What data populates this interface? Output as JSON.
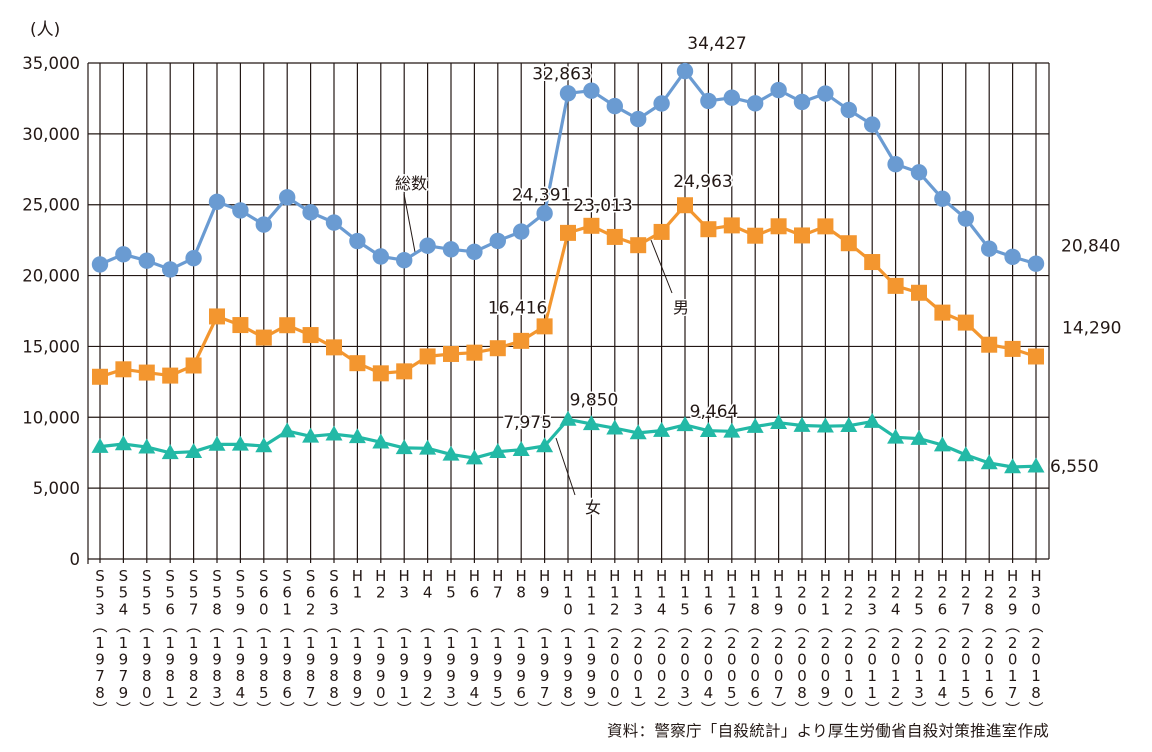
{
  "chart_data": {
    "type": "line",
    "unit_label": "(人)",
    "ylim": [
      0,
      35000
    ],
    "yticks": [
      "0",
      "5,000",
      "10,000",
      "15,000",
      "20,000",
      "25,000",
      "30,000",
      "35,000"
    ],
    "ytick_values": [
      0,
      5000,
      10000,
      15000,
      20000,
      25000,
      30000,
      35000
    ],
    "grid": true,
    "categories": [
      {
        "era": "S",
        "num": "53",
        "year": "1978"
      },
      {
        "era": "S",
        "num": "54",
        "year": "1979"
      },
      {
        "era": "S",
        "num": "55",
        "year": "1980"
      },
      {
        "era": "S",
        "num": "56",
        "year": "1981"
      },
      {
        "era": "S",
        "num": "57",
        "year": "1982"
      },
      {
        "era": "S",
        "num": "58",
        "year": "1983"
      },
      {
        "era": "S",
        "num": "59",
        "year": "1984"
      },
      {
        "era": "S",
        "num": "60",
        "year": "1985"
      },
      {
        "era": "S",
        "num": "61",
        "year": "1986"
      },
      {
        "era": "S",
        "num": "62",
        "year": "1987"
      },
      {
        "era": "S",
        "num": "63",
        "year": "1988"
      },
      {
        "era": "H",
        "num": "1",
        "year": "1989"
      },
      {
        "era": "H",
        "num": "2",
        "year": "1990"
      },
      {
        "era": "H",
        "num": "3",
        "year": "1991"
      },
      {
        "era": "H",
        "num": "4",
        "year": "1992"
      },
      {
        "era": "H",
        "num": "5",
        "year": "1993"
      },
      {
        "era": "H",
        "num": "6",
        "year": "1994"
      },
      {
        "era": "H",
        "num": "7",
        "year": "1995"
      },
      {
        "era": "H",
        "num": "8",
        "year": "1996"
      },
      {
        "era": "H",
        "num": "9",
        "year": "1997"
      },
      {
        "era": "H",
        "num": "10",
        "year": "1998"
      },
      {
        "era": "H",
        "num": "11",
        "year": "1999"
      },
      {
        "era": "H",
        "num": "12",
        "year": "2000"
      },
      {
        "era": "H",
        "num": "13",
        "year": "2001"
      },
      {
        "era": "H",
        "num": "14",
        "year": "2002"
      },
      {
        "era": "H",
        "num": "15",
        "year": "2003"
      },
      {
        "era": "H",
        "num": "16",
        "year": "2004"
      },
      {
        "era": "H",
        "num": "17",
        "year": "2005"
      },
      {
        "era": "H",
        "num": "18",
        "year": "2006"
      },
      {
        "era": "H",
        "num": "19",
        "year": "2007"
      },
      {
        "era": "H",
        "num": "20",
        "year": "2008"
      },
      {
        "era": "H",
        "num": "21",
        "year": "2009"
      },
      {
        "era": "H",
        "num": "22",
        "year": "2010"
      },
      {
        "era": "H",
        "num": "23",
        "year": "2011"
      },
      {
        "era": "H",
        "num": "24",
        "year": "2012"
      },
      {
        "era": "H",
        "num": "25",
        "year": "2013"
      },
      {
        "era": "H",
        "num": "26",
        "year": "2014"
      },
      {
        "era": "H",
        "num": "27",
        "year": "2015"
      },
      {
        "era": "H",
        "num": "28",
        "year": "2016"
      },
      {
        "era": "H",
        "num": "29",
        "year": "2017"
      },
      {
        "era": "H",
        "num": "30",
        "year": "2018"
      }
    ],
    "series": [
      {
        "name": "総数",
        "marker": "circle",
        "color": "#6a9bd2",
        "values": [
          20788,
          21503,
          21048,
          20434,
          21228,
          25202,
          24596,
          23599,
          25524,
          24460,
          23742,
          22436,
          21346,
          21084,
          22104,
          21851,
          21679,
          22445,
          23104,
          24391,
          32863,
          33048,
          31957,
          31042,
          32143,
          34427,
          32325,
          32552,
          32155,
          33093,
          32249,
          32845,
          31690,
          30651,
          27858,
          27283,
          25427,
          24025,
          21897,
          21321,
          20840
        ],
        "data_labels": [
          {
            "index": 19,
            "text": "24,391"
          },
          {
            "index": 20,
            "text": "32,863"
          },
          {
            "index": 25,
            "text": "34,427"
          },
          {
            "index": 40,
            "text": "20,840"
          }
        ]
      },
      {
        "name": "男",
        "marker": "square",
        "color": "#f3962f",
        "values": [
          12859,
          13386,
          13155,
          12942,
          13654,
          17116,
          16508,
          15624,
          16497,
          15802,
          14934,
          13818,
          13102,
          13242,
          14296,
          14468,
          14560,
          14874,
          15393,
          16416,
          23013,
          23512,
          22727,
          22144,
          23080,
          24963,
          23272,
          23540,
          22813,
          23478,
          22831,
          23472,
          22283,
          20955,
          19273,
          18787,
          17386,
          16681,
          15121,
          14826,
          14290
        ],
        "data_labels": [
          {
            "index": 19,
            "text": "16,416"
          },
          {
            "index": 20,
            "text": "23,013"
          },
          {
            "index": 25,
            "text": "24,963"
          },
          {
            "index": 40,
            "text": "14,290"
          }
        ]
      },
      {
        "name": "女",
        "marker": "triangle",
        "color": "#23b9a6",
        "values": [
          7929,
          8117,
          7893,
          7492,
          7574,
          8086,
          8088,
          7975,
          9027,
          8658,
          8808,
          8618,
          8244,
          7842,
          7808,
          7383,
          7119,
          7571,
          7711,
          7975,
          9850,
          9536,
          9230,
          8898,
          9063,
          9464,
          9053,
          9012,
          9342,
          9615,
          9418,
          9373,
          9407,
          9696,
          8585,
          8496,
          8041,
          7344,
          6776,
          6495,
          6550
        ],
        "data_labels": [
          {
            "index": 19,
            "text": "7,975"
          },
          {
            "index": 20,
            "text": "9,850"
          },
          {
            "index": 25,
            "text": "9,464"
          },
          {
            "index": 40,
            "text": "6,550"
          }
        ]
      }
    ]
  },
  "source_note": "資料：警察庁「自殺統計」より厚生労働省自殺対策推進室作成"
}
